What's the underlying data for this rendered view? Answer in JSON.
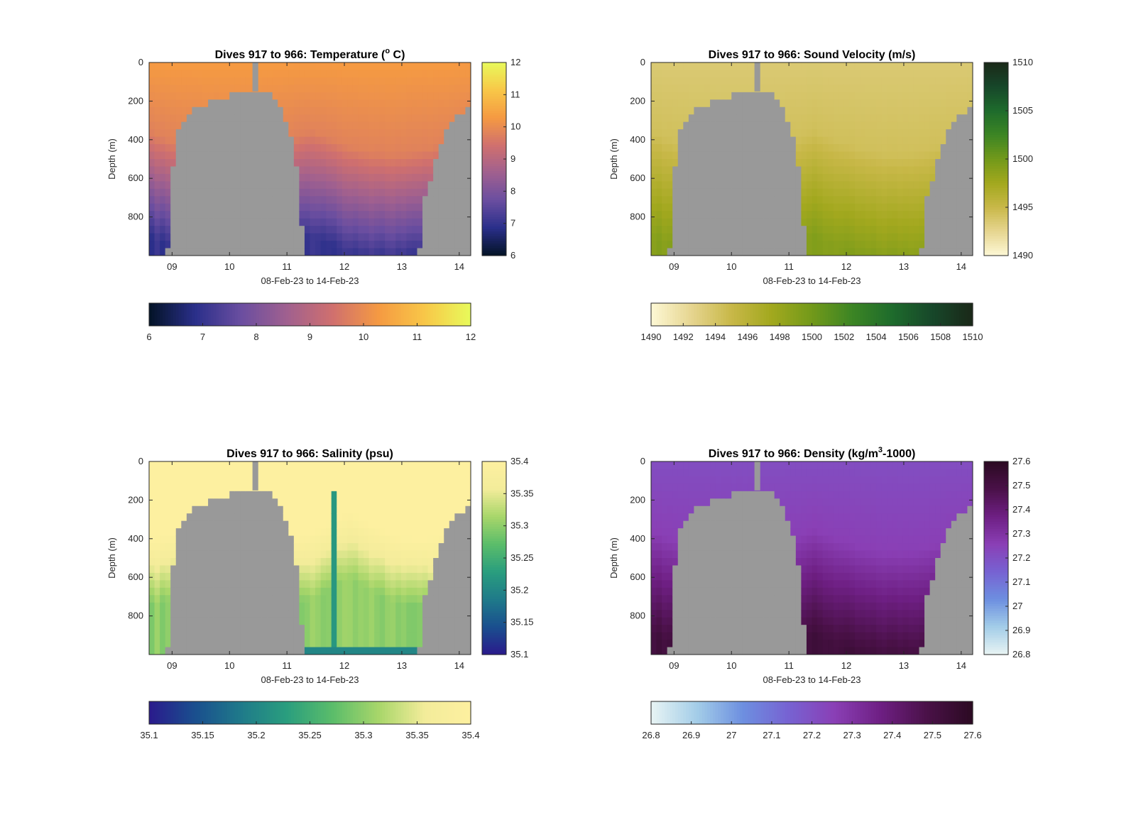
{
  "figure": {
    "background": "#ffffff"
  },
  "chart_data": [
    {
      "type": "heatmap",
      "title_prefix": "Dives 917 to 966: Temperature (",
      "title_sup": "o",
      "title_suffix": " C)",
      "xlabel": "08-Feb-23 to 14-Feb-23",
      "ylabel": "Depth (m)",
      "xticks": [
        9,
        10,
        11,
        12,
        13,
        14
      ],
      "xtick_labels": [
        "09",
        "10",
        "11",
        "12",
        "13",
        "14"
      ],
      "xlim": [
        8.6,
        14.2
      ],
      "yticks": [
        0,
        200,
        400,
        600,
        800
      ],
      "ytick_labels": [
        "0",
        "200",
        "400",
        "600",
        "800"
      ],
      "ylim": [
        1000,
        0
      ],
      "clim": [
        6,
        12
      ],
      "cbar_ticks": [
        "6",
        "7",
        "8",
        "9",
        "10",
        "11",
        "12"
      ],
      "hcbar_ticks": [
        "6",
        "7",
        "8",
        "9",
        "10",
        "11",
        "12"
      ],
      "colormap": [
        "#031326",
        "#2a2f8a",
        "#6a4ea0",
        "#a0608f",
        "#d0706e",
        "#f59a42",
        "#f8c748",
        "#e8fa5b"
      ],
      "field": "temperature",
      "surface_value": 10.3,
      "deep_value": 7.0,
      "seafloor_color": "#999999"
    },
    {
      "type": "heatmap",
      "title_prefix": "Dives 917 to 966: Sound Velocity (m/s)",
      "title_sup": "",
      "title_suffix": "",
      "xlabel": "08-Feb-23 to 14-Feb-23",
      "ylabel": "Depth (m)",
      "xticks": [
        9,
        10,
        11,
        12,
        13,
        14
      ],
      "xtick_labels": [
        "09",
        "10",
        "11",
        "12",
        "13",
        "14"
      ],
      "xlim": [
        8.6,
        14.2
      ],
      "yticks": [
        0,
        200,
        400,
        600,
        800
      ],
      "ytick_labels": [
        "0",
        "200",
        "400",
        "600",
        "800"
      ],
      "ylim": [
        1000,
        0
      ],
      "clim": [
        1490,
        1510
      ],
      "cbar_ticks": [
        "1490",
        "1495",
        "1500",
        "1505",
        "1510"
      ],
      "hcbar_ticks": [
        "1490",
        "1492",
        "1494",
        "1496",
        "1498",
        "1500",
        "1502",
        "1504",
        "1506",
        "1508",
        "1510"
      ],
      "colormap": [
        "#fdf8d5",
        "#e6d590",
        "#c8b848",
        "#a2a81e",
        "#72991a",
        "#3c8524",
        "#1e6b2c",
        "#17472a",
        "#1a2818"
      ],
      "field": "sound_velocity",
      "surface_value": 1493.5,
      "deep_value": 1499.0,
      "seafloor_color": "#999999"
    },
    {
      "type": "heatmap",
      "title_prefix": "Dives 917 to 966: Salinity (psu)",
      "title_sup": "",
      "title_suffix": "",
      "xlabel": "08-Feb-23 to 14-Feb-23",
      "ylabel": "Depth (m)",
      "xticks": [
        9,
        10,
        11,
        12,
        13,
        14
      ],
      "xtick_labels": [
        "09",
        "10",
        "11",
        "12",
        "13",
        "14"
      ],
      "xlim": [
        8.6,
        14.2
      ],
      "yticks": [
        0,
        200,
        400,
        600,
        800
      ],
      "ytick_labels": [
        "0",
        "200",
        "400",
        "600",
        "800"
      ],
      "ylim": [
        1000,
        0
      ],
      "clim": [
        35.1,
        35.4
      ],
      "cbar_ticks": [
        "35.1",
        "35.15",
        "35.2",
        "35.25",
        "35.3",
        "35.35",
        "35.4"
      ],
      "hcbar_ticks": [
        "35.1",
        "35.15",
        "35.2",
        "35.25",
        "35.3",
        "35.35",
        "35.4"
      ],
      "colormap": [
        "#2a1a8c",
        "#1a4f8e",
        "#1f7a8a",
        "#2a9e7e",
        "#5bbd6a",
        "#a8d66a",
        "#f3ec9a",
        "#fdf0a0"
      ],
      "field": "salinity",
      "surface_value": 35.4,
      "deep_value": 35.3,
      "seafloor_color": "#999999"
    },
    {
      "type": "heatmap",
      "title_prefix": "Dives 917 to 966: Density (kg/m",
      "title_sup": "3",
      "title_suffix": "-1000)",
      "xlabel": "08-Feb-23 to 14-Feb-23",
      "ylabel": "Depth (m)",
      "xticks": [
        9,
        10,
        11,
        12,
        13,
        14
      ],
      "xtick_labels": [
        "09",
        "10",
        "11",
        "12",
        "13",
        "14"
      ],
      "xlim": [
        8.6,
        14.2
      ],
      "yticks": [
        0,
        200,
        400,
        600,
        800
      ],
      "ytick_labels": [
        "0",
        "200",
        "400",
        "600",
        "800"
      ],
      "ylim": [
        1000,
        0
      ],
      "clim": [
        26.8,
        27.6
      ],
      "cbar_ticks": [
        "26.8",
        "26.9",
        "27",
        "27.1",
        "27.2",
        "27.3",
        "27.4",
        "27.5",
        "27.6"
      ],
      "hcbar_ticks": [
        "26.8",
        "26.9",
        "27",
        "27.1",
        "27.2",
        "27.3",
        "27.4",
        "27.5",
        "27.6"
      ],
      "colormap": [
        "#e8f4f4",
        "#a3cde8",
        "#6d8fe0",
        "#7762d2",
        "#8a3fb5",
        "#6e1f83",
        "#4a1148",
        "#2b0a22"
      ],
      "field": "density",
      "surface_value": 27.21,
      "deep_value": 27.52,
      "seafloor_color": "#999999"
    }
  ]
}
